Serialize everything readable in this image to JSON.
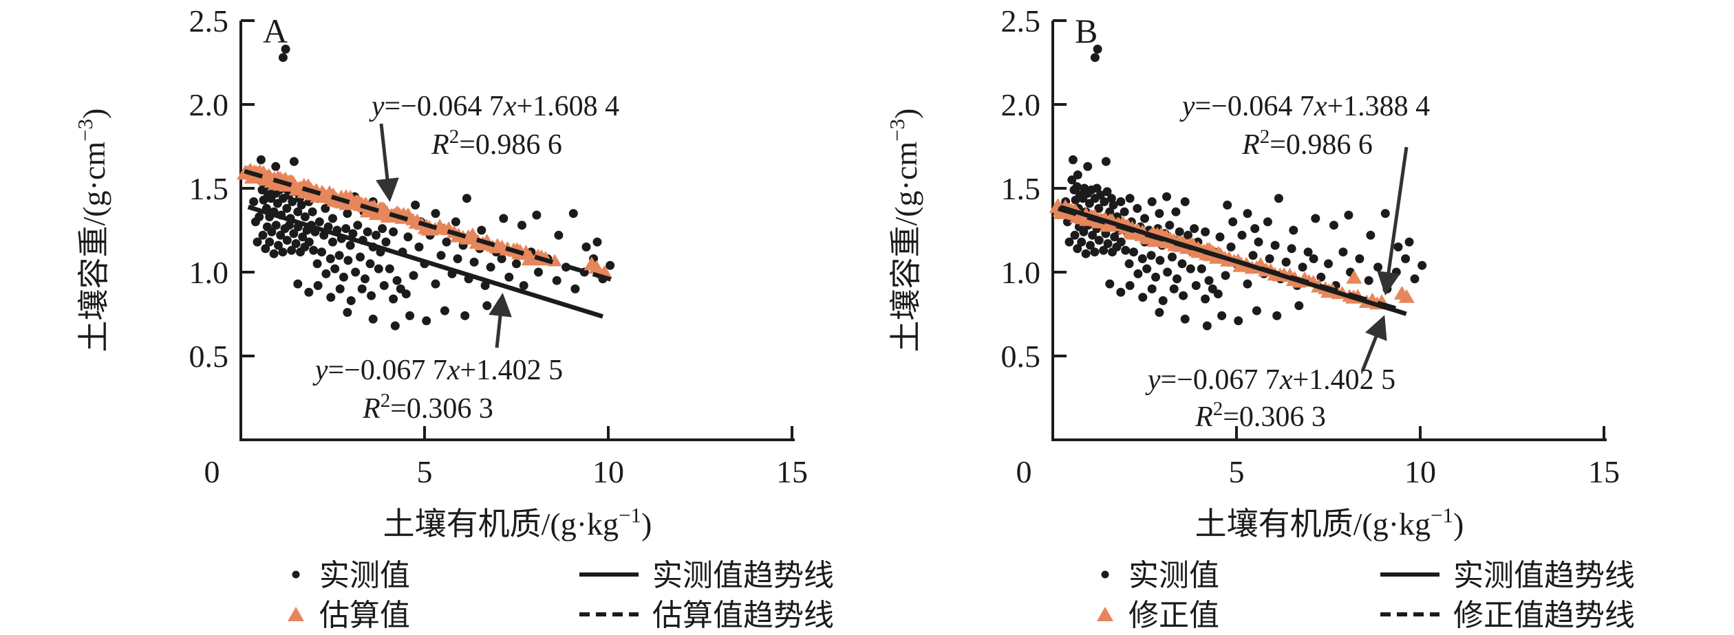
{
  "figure": {
    "panels": [
      {
        "label": "A",
        "x_tick_labels": [
          "0",
          "5",
          "10",
          "15"
        ],
        "y_tick_labels": [
          "2.5",
          "2.0",
          "1.5",
          "1.0",
          "0.5"
        ],
        "x_title": {
          "main": "土壤有机质/(g·kg",
          "sup": "−1",
          "close": ")"
        },
        "y_title": {
          "main": "土壤容重/(g·cm",
          "sup": "−3",
          "close": ")"
        },
        "eq_top": {
          "y": "y",
          "mid": "=−0.064 7",
          "x": "x",
          "tail": "+1.608 4",
          "R": "R",
          "sup": "2",
          "rest": "=0.986 6"
        },
        "eq_bottom": {
          "y": "y",
          "mid": "=−0.067 7",
          "x": "x",
          "tail": "+1.402 5",
          "R": "R",
          "sup": "2",
          "rest": "=0.306 3"
        },
        "legend": [
          {
            "marker": "dot",
            "label": "实测值"
          },
          {
            "marker": "triangle",
            "label": "估算值"
          },
          {
            "marker": "solid-line",
            "label": "实测值趋势线"
          },
          {
            "marker": "dashed-line",
            "label": "估算值趋势线"
          }
        ]
      },
      {
        "label": "B",
        "x_tick_labels": [
          "0",
          "5",
          "10",
          "15"
        ],
        "y_tick_labels": [
          "2.5",
          "2.0",
          "1.5",
          "1.0",
          "0.5"
        ],
        "x_title": {
          "main": "土壤有机质/(g·kg",
          "sup": "−1",
          "close": ")"
        },
        "y_title": {
          "main": "土壤容重/(g·cm",
          "sup": "−3",
          "close": ")"
        },
        "eq_top": {
          "y": "y",
          "mid": "=−0.064 7",
          "x": "x",
          "tail": "+1.388 4",
          "R": "R",
          "sup": "2",
          "rest": "=0.986 6"
        },
        "eq_bottom": {
          "y": "y",
          "mid": "=−0.067 7",
          "x": "x",
          "tail": "+1.402 5",
          "R": "R",
          "sup": "2",
          "rest": "=0.306 3"
        },
        "legend": [
          {
            "marker": "dot",
            "label": "实测值"
          },
          {
            "marker": "triangle",
            "label": "修正值"
          },
          {
            "marker": "solid-line",
            "label": "实测值趋势线"
          },
          {
            "marker": "dashed-line",
            "label": "修正值趋势线"
          }
        ]
      }
    ]
  },
  "chart_data": {
    "type": "scatter",
    "xlabel": "土壤有机质/(g·kg⁻¹)",
    "ylabel": "土壤容重/(g·cm⁻³)",
    "xlim": [
      0,
      15
    ],
    "ylim": [
      0,
      2.5
    ],
    "x_ticks": [
      0,
      5,
      10,
      15
    ],
    "y_ticks": [
      0.5,
      1.0,
      1.5,
      2.0,
      2.5
    ],
    "grid": false,
    "marker_colors": {
      "measured": "#1b1b1b",
      "triangle": "#E6865A"
    },
    "measured_points": [
      [
        0.58,
        1.49
      ],
      [
        0.62,
        1.43
      ],
      [
        0.66,
        1.51
      ],
      [
        0.7,
        1.38
      ],
      [
        0.74,
        1.46
      ],
      [
        0.78,
        1.33
      ],
      [
        0.82,
        1.44
      ],
      [
        0.86,
        1.5
      ],
      [
        0.9,
        1.36
      ],
      [
        0.95,
        1.47
      ],
      [
        1,
        1.41
      ],
      [
        1.05,
        1.49
      ],
      [
        1.1,
        1.34
      ],
      [
        1.15,
        1.44
      ],
      [
        1.2,
        1.5
      ],
      [
        1.25,
        1.38
      ],
      [
        1.3,
        1.46
      ],
      [
        1.35,
        1.32
      ],
      [
        1.4,
        1.42
      ],
      [
        1.48,
        1.48
      ],
      [
        1.55,
        1.36
      ],
      [
        1.6,
        1.44
      ],
      [
        0.6,
        1.22
      ],
      [
        0.67,
        1.14
      ],
      [
        0.72,
        1.27
      ],
      [
        0.78,
        1.18
      ],
      [
        0.84,
        1.24
      ],
      [
        0.9,
        1.11
      ],
      [
        0.96,
        1.28
      ],
      [
        1.02,
        1.16
      ],
      [
        1.08,
        1.22
      ],
      [
        1.14,
        1.12
      ],
      [
        1.2,
        1.26
      ],
      [
        1.26,
        1.19
      ],
      [
        1.32,
        1.28
      ],
      [
        1.38,
        1.13
      ],
      [
        1.44,
        1.23
      ],
      [
        1.5,
        1.17
      ],
      [
        1.56,
        1.27
      ],
      [
        1.62,
        1.12
      ],
      [
        1.68,
        1.21
      ],
      [
        1.74,
        1.15
      ],
      [
        1.8,
        1.25
      ],
      [
        1.86,
        1.18
      ],
      [
        1.92,
        1.28
      ],
      [
        1.98,
        1.13
      ],
      [
        2.02,
        1.24
      ],
      [
        2.08,
        1.05
      ],
      [
        2.14,
        1.3
      ],
      [
        2.2,
        1.12
      ],
      [
        2.26,
        1.22
      ],
      [
        2.32,
        0.99
      ],
      [
        2.38,
        1.27
      ],
      [
        2.44,
        1.08
      ],
      [
        2.5,
        1.18
      ],
      [
        2.56,
        1.02
      ],
      [
        2.62,
        1.25
      ],
      [
        2.68,
        1.1
      ],
      [
        2.74,
        1.2
      ],
      [
        2.8,
        0.97
      ],
      [
        2.86,
        1.26
      ],
      [
        2.92,
        1.07
      ],
      [
        2.98,
        1.16
      ],
      [
        3.05,
        1.23
      ],
      [
        3.12,
        1
      ],
      [
        3.18,
        1.28
      ],
      [
        3.25,
        1.09
      ],
      [
        3.32,
        1.19
      ],
      [
        3.38,
        0.96
      ],
      [
        3.45,
        1.24
      ],
      [
        3.52,
        1.05
      ],
      [
        3.6,
        1.15
      ],
      [
        3.68,
        1.22
      ],
      [
        3.75,
        1.02
      ],
      [
        3.8,
        1.12
      ],
      [
        3.85,
        1.26
      ],
      [
        1.55,
        0.93
      ],
      [
        1.85,
        0.88
      ],
      [
        2.1,
        0.92
      ],
      [
        2.45,
        0.85
      ],
      [
        2.7,
        0.9
      ],
      [
        3,
        0.83
      ],
      [
        3.3,
        0.9
      ],
      [
        3.55,
        0.86
      ],
      [
        3.9,
        0.92
      ],
      [
        4.15,
        0.84
      ],
      [
        4.35,
        0.9
      ],
      [
        4.5,
        0.87
      ],
      [
        3.95,
        1.18
      ],
      [
        4.05,
        1.02
      ],
      [
        4.15,
        1.24
      ],
      [
        4.25,
        0.95
      ],
      [
        4.4,
        1.12
      ],
      [
        4.55,
        1.21
      ],
      [
        4.7,
        0.98
      ],
      [
        4.85,
        1.15
      ],
      [
        5,
        1.05
      ],
      [
        5.15,
        1.22
      ],
      [
        5.3,
        0.93
      ],
      [
        5.45,
        1.1
      ],
      [
        5.6,
        1.18
      ],
      [
        5.75,
        0.99
      ],
      [
        5.9,
        1.08
      ],
      [
        6.05,
        1.16
      ],
      [
        6.2,
        0.96
      ],
      [
        6.35,
        1.06
      ],
      [
        6.5,
        1.14
      ],
      [
        6.65,
        0.92
      ],
      [
        6.8,
        1.03
      ],
      [
        6.95,
        1.12
      ],
      [
        5.5,
        1.26
      ],
      [
        4.9,
        1.3
      ],
      [
        4.2,
        0.68
      ],
      [
        4.6,
        0.74
      ],
      [
        5.05,
        0.71
      ],
      [
        5.55,
        0.77
      ],
      [
        6.1,
        0.74
      ],
      [
        6.7,
        0.8
      ],
      [
        3.6,
        0.72
      ],
      [
        2.9,
        0.76
      ],
      [
        7.1,
        1.08
      ],
      [
        7.3,
        0.97
      ],
      [
        7.5,
        1.05
      ],
      [
        7.7,
        0.92
      ],
      [
        7.9,
        1.12
      ],
      [
        8.1,
        1
      ],
      [
        8.35,
        1.08
      ],
      [
        8.6,
        0.95
      ],
      [
        8.85,
        1.03
      ],
      [
        9.1,
        0.9
      ],
      [
        9.35,
        1
      ],
      [
        9.6,
        1.08
      ],
      [
        9.85,
        0.96
      ],
      [
        10.05,
        1.04
      ],
      [
        6.15,
        1.44
      ],
      [
        7.15,
        1.32
      ],
      [
        7.65,
        1.28
      ],
      [
        8.05,
        1.34
      ],
      [
        8.65,
        1.22
      ],
      [
        9.05,
        1.35
      ],
      [
        9.4,
        1.15
      ],
      [
        9.7,
        1.18
      ],
      [
        5.3,
        1.35
      ],
      [
        4.75,
        1.4
      ],
      [
        5.85,
        1.3
      ],
      [
        6.55,
        1.25
      ],
      [
        0.55,
        1.67
      ],
      [
        0.95,
        1.63
      ],
      [
        0.52,
        1.55
      ],
      [
        1.45,
        1.66
      ],
      [
        0.4,
        1.3
      ],
      [
        0.45,
        1.18
      ],
      [
        0.35,
        1.42
      ],
      [
        0.68,
        1.58
      ],
      [
        0.5,
        1.33
      ],
      [
        1.65,
        1.4
      ],
      [
        1.75,
        1.33
      ],
      [
        1.85,
        1.42
      ],
      [
        1.95,
        1.36
      ],
      [
        2.1,
        1.44
      ],
      [
        2.3,
        1.38
      ],
      [
        2.5,
        1.32
      ],
      [
        2.7,
        1.42
      ],
      [
        2.9,
        1.35
      ],
      [
        3.1,
        1.45
      ],
      [
        3.35,
        1.36
      ],
      [
        3.6,
        1.42
      ],
      [
        1.15,
        2.28
      ],
      [
        1.22,
        2.33
      ]
    ],
    "panels": [
      {
        "label": "A",
        "series": [
          {
            "name": "实测值",
            "type": "scatter-dot",
            "points_ref": "measured_points"
          },
          {
            "name": "估算值",
            "type": "scatter-triangle",
            "on_line": {
              "slope": -0.0647,
              "intercept": 1.6084
            },
            "band_x": {
              "start": 0.12,
              "end": 4.6,
              "step": 0.05
            },
            "sparse_x": [
              4.68,
              4.8,
              4.93,
              5.05,
              5.14,
              5.28,
              5.42,
              5.55,
              5.66,
              5.8,
              5.92,
              6.05,
              6.18,
              6.3,
              6.45,
              6.58,
              6.7,
              6.85,
              6.98,
              7.1,
              7.25,
              7.42,
              7.52,
              7.6,
              7.76,
              7.88,
              8.08,
              8.18,
              8.3,
              8.55
            ],
            "extra_points": [
              [
                9.55,
                1.05
              ],
              [
                9.68,
                1.03
              ],
              [
                9.9,
                1.0
              ]
            ]
          },
          {
            "name": "实测值趋势线",
            "type": "line",
            "style": "solid",
            "slope": -0.0677,
            "intercept": 1.4025,
            "r2": 0.3063,
            "x_span": [
              0.2,
              9.85
            ]
          },
          {
            "name": "估算值趋势线",
            "type": "line",
            "style": "dashed",
            "slope": -0.0647,
            "intercept": 1.6084,
            "r2": 0.9866,
            "x_span": [
              0.1,
              10.25
            ]
          }
        ],
        "annotations": [
          {
            "text": "y=−0.064 7x+1.608 4",
            "r2_text": "R²=0.986 6",
            "points_to": "估算值趋势线"
          },
          {
            "text": "y=−0.067 7x+1.402 5",
            "r2_text": "R²=0.306 3",
            "points_to": "实测值趋势线"
          }
        ]
      },
      {
        "label": "B",
        "series": [
          {
            "name": "实测值",
            "type": "scatter-dot",
            "points_ref": "measured_points"
          },
          {
            "name": "修正值",
            "type": "scatter-triangle",
            "on_line": {
              "slope": -0.0647,
              "intercept": 1.3884
            },
            "band_x": {
              "start": 0.15,
              "end": 4.6,
              "step": 0.05
            },
            "sparse_x": [
              4.68,
              4.8,
              4.93,
              5.05,
              5.14,
              5.28,
              5.42,
              5.55,
              5.66,
              5.8,
              5.92,
              6.05,
              6.18,
              6.3,
              6.45,
              6.58,
              6.7,
              6.85,
              6.98,
              7.1,
              7.25,
              7.42,
              7.52,
              7.6,
              7.76,
              7.88,
              8.08,
              8.18,
              8.3,
              8.55,
              8.7,
              8.82,
              8.95
            ],
            "extra_points": [
              [
                8.2,
                0.97
              ],
              [
                9.5,
                0.875
              ],
              [
                9.63,
                0.855
              ]
            ]
          },
          {
            "name": "实测值趋势线",
            "type": "line",
            "style": "solid",
            "slope": -0.0677,
            "intercept": 1.4025,
            "r2": 0.3063,
            "x_span": [
              0.2,
              9.62
            ]
          },
          {
            "name": "修正值趋势线",
            "type": "line",
            "style": "dashed",
            "slope": -0.0647,
            "intercept": 1.3884,
            "r2": 0.9866,
            "x_span": [
              0.15,
              9.62
            ]
          }
        ],
        "annotations": [
          {
            "text": "y=−0.064 7x+1.388 4",
            "r2_text": "R²=0.986 6",
            "points_to": "修正值趋势线"
          },
          {
            "text": "y=−0.067 7x+1.402 5",
            "r2_text": "R²=0.306 3",
            "points_to": "实测值趋势线"
          }
        ]
      }
    ]
  }
}
